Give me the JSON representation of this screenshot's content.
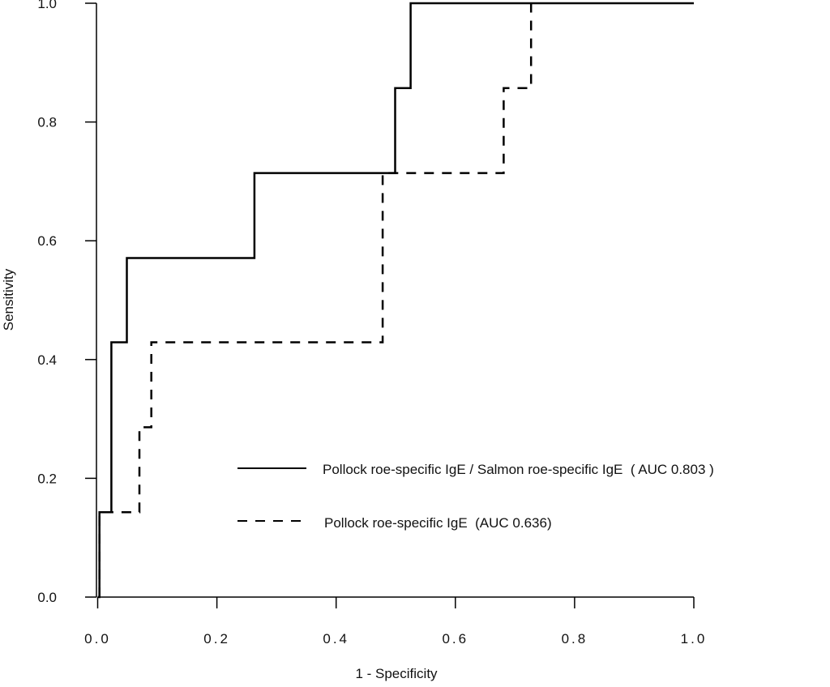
{
  "chart_data": {
    "type": "line",
    "title": "",
    "xlabel": "1 - Specificity",
    "ylabel": "Sensitivity",
    "xlim": [
      0,
      1
    ],
    "ylim": [
      0,
      1
    ],
    "xticks": [
      "0.0",
      "0.2",
      "0.4",
      "0.6",
      "0.8",
      "1.0"
    ],
    "yticks": [
      "0.0",
      "0.2",
      "0.4",
      "0.6",
      "0.8",
      "1.0"
    ],
    "grid": false,
    "legend_position": "bottom-right",
    "series": [
      {
        "name": "Pollock roe-specific IgE / Salmon roe-specific IgE  ( AUC 0.803 )",
        "style": "solid",
        "color": "#000000",
        "x": [
          0,
          0.003,
          0.003,
          0.023,
          0.023,
          0.049,
          0.049,
          0.263,
          0.263,
          0.499,
          0.499,
          0.525,
          0.525,
          1.0
        ],
        "y": [
          0,
          0,
          0.143,
          0.143,
          0.429,
          0.429,
          0.571,
          0.571,
          0.714,
          0.714,
          0.857,
          0.857,
          1.0,
          1.0
        ]
      },
      {
        "name": "Pollock roe-specific IgE  (AUC 0.636)",
        "style": "dashed",
        "color": "#000000",
        "x": [
          0.003,
          0.003,
          0.07,
          0.07,
          0.09,
          0.09,
          0.478,
          0.478,
          0.681,
          0.681,
          0.727,
          0.727
        ],
        "y": [
          0,
          0.143,
          0.143,
          0.286,
          0.286,
          0.429,
          0.429,
          0.714,
          0.714,
          0.857,
          0.857,
          1.0
        ]
      }
    ]
  }
}
